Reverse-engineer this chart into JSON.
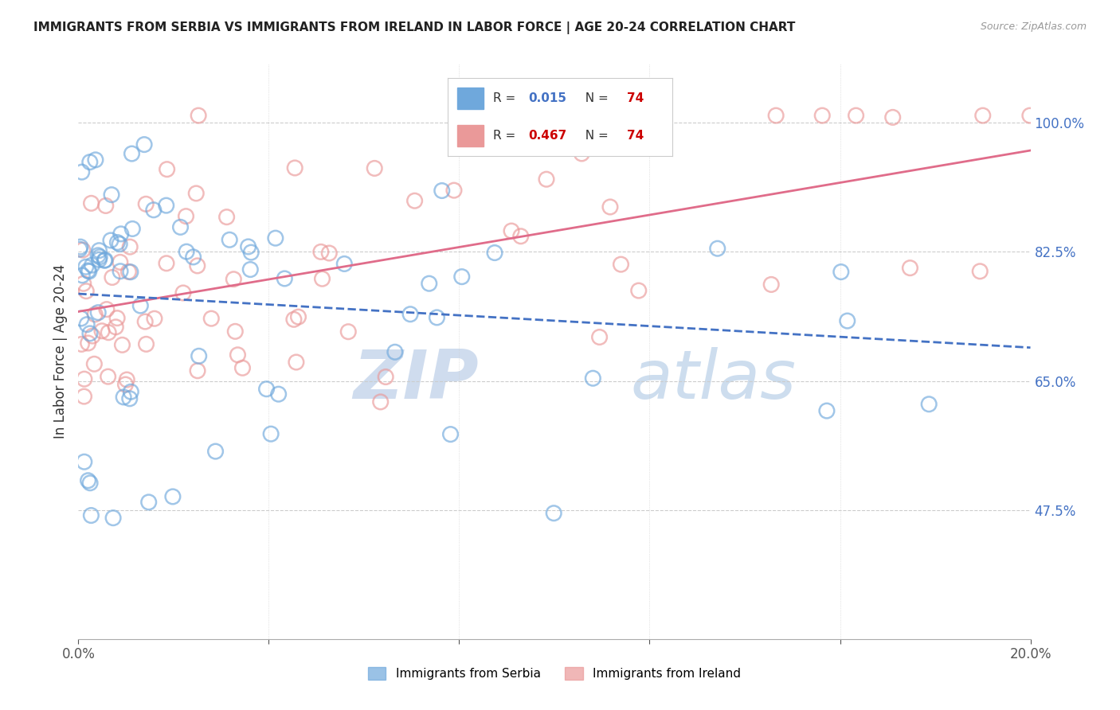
{
  "title": "IMMIGRANTS FROM SERBIA VS IMMIGRANTS FROM IRELAND IN LABOR FORCE | AGE 20-24 CORRELATION CHART",
  "source": "Source: ZipAtlas.com",
  "ylabel": "In Labor Force | Age 20-24",
  "xlim": [
    0.0,
    0.2
  ],
  "ylim": [
    0.3,
    1.08
  ],
  "xticks": [
    0.0,
    0.04,
    0.08,
    0.12,
    0.16,
    0.2
  ],
  "xticklabels": [
    "0.0%",
    "",
    "",
    "",
    "",
    "20.0%"
  ],
  "ytick_values": [
    0.475,
    0.65,
    0.825,
    1.0
  ],
  "ytick_labels": [
    "47.5%",
    "65.0%",
    "82.5%",
    "100.0%"
  ],
  "serbia_color": "#6fa8dc",
  "ireland_color": "#ea9999",
  "serbia_R": 0.015,
  "serbia_N": 74,
  "ireland_R": 0.467,
  "ireland_N": 74,
  "watermark_zip": "ZIP",
  "watermark_atlas": "atlas",
  "background_color": "#ffffff",
  "grid_color": "#cccccc",
  "tick_color": "#4472c4",
  "serbia_line_color": "#4472c4",
  "ireland_line_color": "#e06c8a",
  "legend_serbia_R_color": "#4472c4",
  "legend_ireland_R_color": "#cc0000",
  "legend_N_color": "#cc0000"
}
